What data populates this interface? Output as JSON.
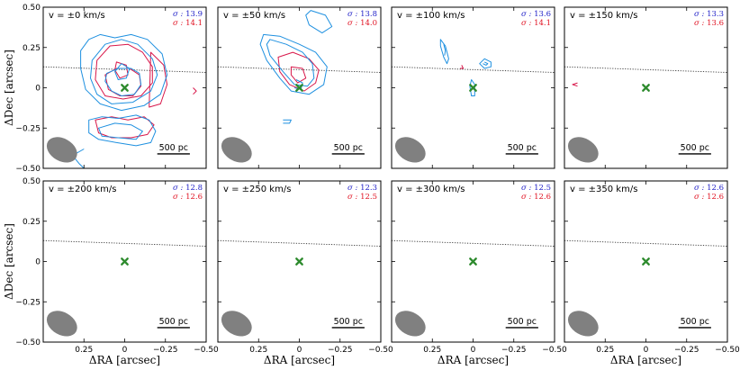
{
  "chart_data": {
    "type": "contour-grid",
    "x_axis_label": "ΔRA [arcsec]",
    "y_axis_label": "ΔDec [arcsec]",
    "xlim": [
      0.5,
      -0.5
    ],
    "ylim": [
      -0.5,
      0.5
    ],
    "x_ticks": [
      0.25,
      0,
      -0.25,
      -0.5
    ],
    "x_tick_labels": [
      "0.25",
      "0",
      "−0.25",
      "−0.50"
    ],
    "y_ticks": [
      0.5,
      0.25,
      0,
      -0.25,
      -0.5
    ],
    "y_tick_labels": [
      "0.50",
      "0.25",
      "0",
      "−0.25",
      "−0.50"
    ],
    "scale_bar_label": "500 pc",
    "sigma_prefix": "σ : ",
    "blue_color": "#1e90e0",
    "red_color": "#d8174a",
    "marker_color": "#2e8b2e",
    "beam_color": "#808080",
    "center_marker": [
      0,
      0
    ],
    "dotted_line": {
      "x": [
        0.5,
        -0.5
      ],
      "y": [
        0.13,
        0.095
      ]
    },
    "beam": {
      "x": 0.385,
      "y": -0.385,
      "major_arcsec": 0.2,
      "minor_arcsec": 0.14,
      "angle_deg": 30
    },
    "scale_bar_arcsec": [
      -0.2,
      -0.4
    ],
    "panels": [
      {
        "label": "v = ±0 km/s",
        "sigma_blue": "13.9",
        "sigma_red": "14.1",
        "blue_contours": [
          [
            [
              0.11,
              0.09
            ],
            [
              0.04,
              0.12
            ],
            [
              -0.04,
              0.12
            ],
            [
              -0.09,
              0.09
            ],
            [
              -0.1,
              0.02
            ],
            [
              -0.06,
              -0.04
            ],
            [
              0.02,
              -0.05
            ],
            [
              0.08,
              -0.02
            ],
            [
              0.12,
              0.04
            ]
          ],
          [
            [
              0.2,
              0.17
            ],
            [
              0.12,
              0.27
            ],
            [
              0.02,
              0.3
            ],
            [
              -0.08,
              0.27
            ],
            [
              -0.17,
              0.18
            ],
            [
              -0.2,
              0.08
            ],
            [
              -0.16,
              -0.02
            ],
            [
              -0.05,
              -0.09
            ],
            [
              0.08,
              -0.1
            ],
            [
              0.17,
              -0.04
            ],
            [
              0.21,
              0.06
            ]
          ],
          [
            [
              0.22,
              0.3
            ],
            [
              0.15,
              0.33
            ],
            [
              0.06,
              0.31
            ],
            [
              -0.04,
              0.33
            ],
            [
              -0.14,
              0.3
            ],
            [
              -0.23,
              0.21
            ],
            [
              -0.26,
              0.08
            ],
            [
              -0.22,
              -0.04
            ],
            [
              -0.12,
              -0.11
            ],
            [
              0.02,
              -0.14
            ],
            [
              0.15,
              -0.1
            ],
            [
              0.24,
              -0.01
            ],
            [
              0.27,
              0.12
            ],
            [
              0.27,
              0.23
            ]
          ],
          [
            [
              0.02,
              0.15
            ],
            [
              -0.03,
              0.12
            ],
            [
              -0.01,
              0.06
            ],
            [
              0.04,
              0.05
            ],
            [
              0.06,
              0.1
            ]
          ],
          [
            [
              0.22,
              -0.2
            ],
            [
              0.14,
              -0.18
            ],
            [
              0.04,
              -0.19
            ],
            [
              -0.07,
              -0.17
            ],
            [
              -0.15,
              -0.2
            ],
            [
              -0.19,
              -0.27
            ],
            [
              -0.16,
              -0.34
            ],
            [
              -0.07,
              -0.36
            ],
            [
              0.05,
              -0.34
            ],
            [
              0.16,
              -0.32
            ],
            [
              0.22,
              -0.28
            ]
          ],
          [
            [
              0.16,
              -0.25
            ],
            [
              0.06,
              -0.22
            ],
            [
              -0.04,
              -0.23
            ],
            [
              -0.11,
              -0.27
            ],
            [
              -0.07,
              -0.32
            ],
            [
              0.04,
              -0.31
            ],
            [
              0.14,
              -0.3
            ]
          ],
          [
            [
              0.25,
              -0.38
            ],
            [
              0.32,
              -0.42
            ],
            [
              0.28,
              -0.47
            ],
            [
              0.25,
              -0.5
            ]
          ]
        ],
        "red_contours": [
          [
            [
              0.12,
              0.08
            ],
            [
              0.05,
              0.12
            ],
            [
              -0.03,
              0.12
            ],
            [
              -0.09,
              0.08
            ],
            [
              -0.1,
              0.01
            ],
            [
              -0.05,
              -0.05
            ],
            [
              0.03,
              -0.05
            ],
            [
              0.1,
              -0.01
            ]
          ],
          [
            [
              0.17,
              0.17
            ],
            [
              0.09,
              0.26
            ],
            [
              -0.02,
              0.27
            ],
            [
              -0.11,
              0.22
            ],
            [
              -0.17,
              0.13
            ],
            [
              -0.17,
              0.03
            ],
            [
              -0.1,
              -0.05
            ],
            [
              0.01,
              -0.07
            ],
            [
              0.12,
              -0.05
            ],
            [
              0.18,
              0.05
            ]
          ],
          [
            [
              -0.16,
              0.22
            ],
            [
              -0.24,
              0.14
            ],
            [
              -0.26,
              0.02
            ],
            [
              -0.22,
              -0.1
            ],
            [
              -0.15,
              -0.12
            ]
          ],
          [
            [
              0.05,
              0.16
            ],
            [
              -0.01,
              0.14
            ],
            [
              -0.02,
              0.08
            ],
            [
              0.03,
              0.06
            ],
            [
              0.06,
              0.11
            ]
          ],
          [
            [
              0.18,
              -0.2
            ],
            [
              0.08,
              -0.18
            ],
            [
              -0.02,
              -0.2
            ],
            [
              -0.12,
              -0.18
            ],
            [
              -0.18,
              -0.23
            ],
            [
              -0.14,
              -0.29
            ],
            [
              -0.04,
              -0.31
            ],
            [
              0.08,
              -0.31
            ],
            [
              0.16,
              -0.28
            ]
          ],
          [
            [
              -0.42,
              0.0
            ],
            [
              -0.44,
              -0.02
            ],
            [
              -0.42,
              -0.04
            ]
          ]
        ]
      },
      {
        "label": "v = ±50 km/s",
        "sigma_blue": "13.8",
        "sigma_red": "14.0",
        "blue_contours": [
          [
            [
              0.18,
              0.3
            ],
            [
              0.08,
              0.27
            ],
            [
              -0.02,
              0.22
            ],
            [
              -0.08,
              0.15
            ],
            [
              -0.09,
              0.06
            ],
            [
              -0.05,
              0.01
            ],
            [
              0.03,
              0.02
            ],
            [
              0.1,
              0.1
            ],
            [
              0.18,
              0.2
            ],
            [
              0.2,
              0.27
            ]
          ],
          [
            [
              0.22,
              0.33
            ],
            [
              0.12,
              0.32
            ],
            [
              0.0,
              0.27
            ],
            [
              -0.1,
              0.22
            ],
            [
              -0.17,
              0.13
            ],
            [
              -0.15,
              0.02
            ],
            [
              -0.06,
              -0.04
            ],
            [
              0.05,
              -0.02
            ],
            [
              0.12,
              0.06
            ],
            [
              0.2,
              0.17
            ],
            [
              0.24,
              0.27
            ]
          ],
          [
            [
              -0.07,
              0.48
            ],
            [
              -0.16,
              0.45
            ],
            [
              -0.2,
              0.38
            ],
            [
              -0.14,
              0.34
            ],
            [
              -0.06,
              0.39
            ],
            [
              -0.04,
              0.45
            ]
          ],
          [
            [
              0.1,
              -0.2
            ],
            [
              0.05,
              -0.2
            ],
            [
              0.06,
              -0.22
            ],
            [
              0.1,
              -0.22
            ]
          ],
          [
            [
              0.02,
              0.05
            ],
            [
              -0.02,
              0.03
            ],
            [
              -0.01,
              -0.01
            ],
            [
              0.03,
              0.0
            ]
          ]
        ],
        "red_contours": [
          [
            [
              0.13,
              0.19
            ],
            [
              0.04,
              0.22
            ],
            [
              -0.06,
              0.18
            ],
            [
              -0.12,
              0.11
            ],
            [
              -0.1,
              0.03
            ],
            [
              -0.03,
              -0.02
            ],
            [
              0.06,
              0.02
            ],
            [
              0.12,
              0.1
            ]
          ],
          [
            [
              0.05,
              0.13
            ],
            [
              -0.02,
              0.12
            ],
            [
              -0.04,
              0.06
            ],
            [
              0.01,
              0.03
            ],
            [
              0.05,
              0.08
            ]
          ]
        ]
      },
      {
        "label": "v = ±100 km/s",
        "sigma_blue": "13.6",
        "sigma_red": "14.1",
        "blue_contours": [
          [
            [
              0.2,
              0.3
            ],
            [
              0.17,
              0.26
            ],
            [
              0.15,
              0.18
            ],
            [
              0.16,
              0.15
            ],
            [
              0.18,
              0.19
            ],
            [
              0.2,
              0.26
            ]
          ],
          [
            [
              0.18,
              0.27
            ],
            [
              0.17,
              0.23
            ],
            [
              0.175,
              0.2
            ]
          ],
          [
            [
              -0.07,
              0.18
            ],
            [
              -0.11,
              0.16
            ],
            [
              -0.11,
              0.13
            ],
            [
              -0.07,
              0.12
            ],
            [
              -0.04,
              0.15
            ]
          ],
          [
            [
              -0.07,
              0.16
            ],
            [
              -0.09,
              0.15
            ],
            [
              -0.08,
              0.14
            ],
            [
              -0.06,
              0.15
            ]
          ],
          [
            [
              0.01,
              0.05
            ],
            [
              -0.01,
              0.02
            ],
            [
              -0.01,
              -0.05
            ],
            [
              0.01,
              -0.05
            ],
            [
              0.02,
              0.01
            ]
          ]
        ],
        "red_contours": [
          [
            [
              0.07,
              0.14
            ],
            [
              0.06,
              0.12
            ],
            [
              0.08,
              0.12
            ]
          ]
        ]
      },
      {
        "label": "v = ±150 km/s",
        "sigma_blue": "13.3",
        "sigma_red": "13.6",
        "blue_contours": [],
        "red_contours": [
          [
            [
              0.42,
              0.03
            ],
            [
              0.45,
              0.02
            ],
            [
              0.42,
              0.01
            ]
          ]
        ]
      },
      {
        "label": "v = ±200 km/s",
        "sigma_blue": "12.8",
        "sigma_red": "12.6",
        "blue_contours": [],
        "red_contours": []
      },
      {
        "label": "v = ±250 km/s",
        "sigma_blue": "12.3",
        "sigma_red": "12.5",
        "blue_contours": [],
        "red_contours": []
      },
      {
        "label": "v = ±300 km/s",
        "sigma_blue": "12.5",
        "sigma_red": "12.6",
        "blue_contours": [],
        "red_contours": []
      },
      {
        "label": "v = ±350 km/s",
        "sigma_blue": "12.6",
        "sigma_red": "12.6",
        "blue_contours": [],
        "red_contours": []
      }
    ]
  }
}
